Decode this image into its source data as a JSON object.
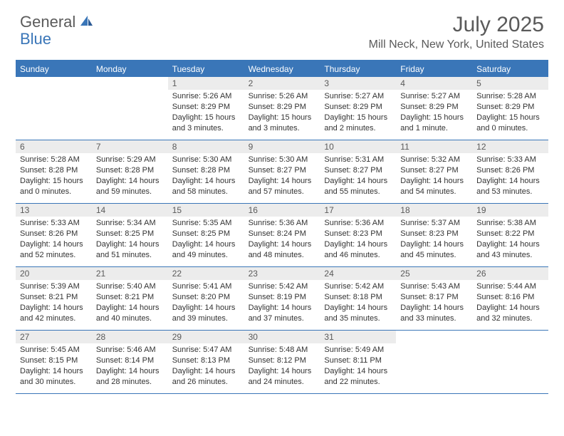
{
  "logo": {
    "general": "General",
    "blue": "Blue"
  },
  "title": "July 2025",
  "location": "Mill Neck, New York, United States",
  "colors": {
    "brand": "#3a76b8",
    "header_text": "#5a5a5a",
    "daynum_bg": "#ececec",
    "body_text": "#333333",
    "white": "#ffffff"
  },
  "weekdays": [
    "Sunday",
    "Monday",
    "Tuesday",
    "Wednesday",
    "Thursday",
    "Friday",
    "Saturday"
  ],
  "weeks": [
    [
      null,
      null,
      {
        "n": "1",
        "sr": "Sunrise: 5:26 AM",
        "ss": "Sunset: 8:29 PM",
        "dl": "Daylight: 15 hours and 3 minutes."
      },
      {
        "n": "2",
        "sr": "Sunrise: 5:26 AM",
        "ss": "Sunset: 8:29 PM",
        "dl": "Daylight: 15 hours and 3 minutes."
      },
      {
        "n": "3",
        "sr": "Sunrise: 5:27 AM",
        "ss": "Sunset: 8:29 PM",
        "dl": "Daylight: 15 hours and 2 minutes."
      },
      {
        "n": "4",
        "sr": "Sunrise: 5:27 AM",
        "ss": "Sunset: 8:29 PM",
        "dl": "Daylight: 15 hours and 1 minute."
      },
      {
        "n": "5",
        "sr": "Sunrise: 5:28 AM",
        "ss": "Sunset: 8:29 PM",
        "dl": "Daylight: 15 hours and 0 minutes."
      }
    ],
    [
      {
        "n": "6",
        "sr": "Sunrise: 5:28 AM",
        "ss": "Sunset: 8:28 PM",
        "dl": "Daylight: 15 hours and 0 minutes."
      },
      {
        "n": "7",
        "sr": "Sunrise: 5:29 AM",
        "ss": "Sunset: 8:28 PM",
        "dl": "Daylight: 14 hours and 59 minutes."
      },
      {
        "n": "8",
        "sr": "Sunrise: 5:30 AM",
        "ss": "Sunset: 8:28 PM",
        "dl": "Daylight: 14 hours and 58 minutes."
      },
      {
        "n": "9",
        "sr": "Sunrise: 5:30 AM",
        "ss": "Sunset: 8:27 PM",
        "dl": "Daylight: 14 hours and 57 minutes."
      },
      {
        "n": "10",
        "sr": "Sunrise: 5:31 AM",
        "ss": "Sunset: 8:27 PM",
        "dl": "Daylight: 14 hours and 55 minutes."
      },
      {
        "n": "11",
        "sr": "Sunrise: 5:32 AM",
        "ss": "Sunset: 8:27 PM",
        "dl": "Daylight: 14 hours and 54 minutes."
      },
      {
        "n": "12",
        "sr": "Sunrise: 5:33 AM",
        "ss": "Sunset: 8:26 PM",
        "dl": "Daylight: 14 hours and 53 minutes."
      }
    ],
    [
      {
        "n": "13",
        "sr": "Sunrise: 5:33 AM",
        "ss": "Sunset: 8:26 PM",
        "dl": "Daylight: 14 hours and 52 minutes."
      },
      {
        "n": "14",
        "sr": "Sunrise: 5:34 AM",
        "ss": "Sunset: 8:25 PM",
        "dl": "Daylight: 14 hours and 51 minutes."
      },
      {
        "n": "15",
        "sr": "Sunrise: 5:35 AM",
        "ss": "Sunset: 8:25 PM",
        "dl": "Daylight: 14 hours and 49 minutes."
      },
      {
        "n": "16",
        "sr": "Sunrise: 5:36 AM",
        "ss": "Sunset: 8:24 PM",
        "dl": "Daylight: 14 hours and 48 minutes."
      },
      {
        "n": "17",
        "sr": "Sunrise: 5:36 AM",
        "ss": "Sunset: 8:23 PM",
        "dl": "Daylight: 14 hours and 46 minutes."
      },
      {
        "n": "18",
        "sr": "Sunrise: 5:37 AM",
        "ss": "Sunset: 8:23 PM",
        "dl": "Daylight: 14 hours and 45 minutes."
      },
      {
        "n": "19",
        "sr": "Sunrise: 5:38 AM",
        "ss": "Sunset: 8:22 PM",
        "dl": "Daylight: 14 hours and 43 minutes."
      }
    ],
    [
      {
        "n": "20",
        "sr": "Sunrise: 5:39 AM",
        "ss": "Sunset: 8:21 PM",
        "dl": "Daylight: 14 hours and 42 minutes."
      },
      {
        "n": "21",
        "sr": "Sunrise: 5:40 AM",
        "ss": "Sunset: 8:21 PM",
        "dl": "Daylight: 14 hours and 40 minutes."
      },
      {
        "n": "22",
        "sr": "Sunrise: 5:41 AM",
        "ss": "Sunset: 8:20 PM",
        "dl": "Daylight: 14 hours and 39 minutes."
      },
      {
        "n": "23",
        "sr": "Sunrise: 5:42 AM",
        "ss": "Sunset: 8:19 PM",
        "dl": "Daylight: 14 hours and 37 minutes."
      },
      {
        "n": "24",
        "sr": "Sunrise: 5:42 AM",
        "ss": "Sunset: 8:18 PM",
        "dl": "Daylight: 14 hours and 35 minutes."
      },
      {
        "n": "25",
        "sr": "Sunrise: 5:43 AM",
        "ss": "Sunset: 8:17 PM",
        "dl": "Daylight: 14 hours and 33 minutes."
      },
      {
        "n": "26",
        "sr": "Sunrise: 5:44 AM",
        "ss": "Sunset: 8:16 PM",
        "dl": "Daylight: 14 hours and 32 minutes."
      }
    ],
    [
      {
        "n": "27",
        "sr": "Sunrise: 5:45 AM",
        "ss": "Sunset: 8:15 PM",
        "dl": "Daylight: 14 hours and 30 minutes."
      },
      {
        "n": "28",
        "sr": "Sunrise: 5:46 AM",
        "ss": "Sunset: 8:14 PM",
        "dl": "Daylight: 14 hours and 28 minutes."
      },
      {
        "n": "29",
        "sr": "Sunrise: 5:47 AM",
        "ss": "Sunset: 8:13 PM",
        "dl": "Daylight: 14 hours and 26 minutes."
      },
      {
        "n": "30",
        "sr": "Sunrise: 5:48 AM",
        "ss": "Sunset: 8:12 PM",
        "dl": "Daylight: 14 hours and 24 minutes."
      },
      {
        "n": "31",
        "sr": "Sunrise: 5:49 AM",
        "ss": "Sunset: 8:11 PM",
        "dl": "Daylight: 14 hours and 22 minutes."
      },
      null,
      null
    ]
  ]
}
